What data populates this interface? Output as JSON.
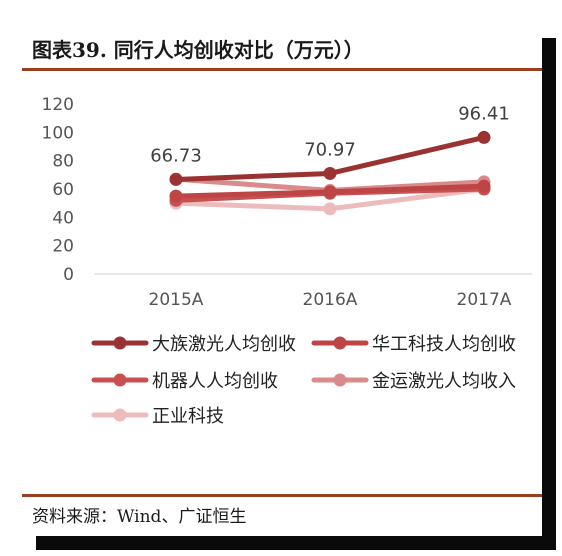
{
  "figure": {
    "title": "图表39.  同行人均创收对比（万元））",
    "source": "资料来源：Wind、广证恒生"
  },
  "chart_data": {
    "type": "line",
    "categories": [
      "2015A",
      "2016A",
      "2017A"
    ],
    "ylim": [
      0,
      120
    ],
    "yticks": [
      "0",
      "20",
      "40",
      "60",
      "80",
      "100",
      "120"
    ],
    "grid": false,
    "legend_position": "bottom",
    "series": [
      {
        "name": "大族激光人均创收",
        "color": "#9b3232",
        "values": [
          66.73,
          70.97,
          96.41
        ],
        "labels": [
          "66.73",
          "70.97",
          "96.41"
        ]
      },
      {
        "name": "华工科技人均创收",
        "color": "#bd4545",
        "values": [
          55,
          58,
          62
        ]
      },
      {
        "name": "机器人人均创收",
        "color": "#c95050",
        "values": [
          52,
          57,
          60
        ]
      },
      {
        "name": "金运激光人均收入",
        "color": "#d98a8a",
        "values": [
          67,
          59,
          65
        ]
      },
      {
        "name": "正业科技",
        "color": "#ecbcbc",
        "values": [
          50,
          46,
          60
        ]
      }
    ]
  }
}
